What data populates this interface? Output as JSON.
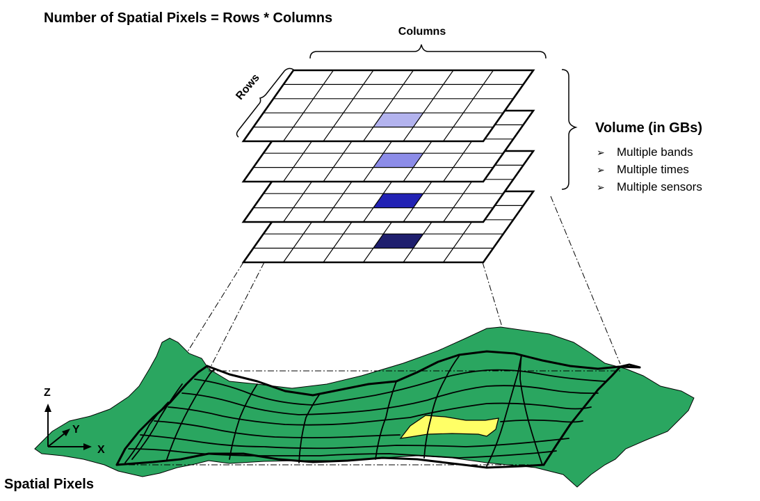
{
  "title": "Number of Spatial Pixels = Rows * Columns",
  "labels": {
    "columns": "Columns",
    "rows": "Rows",
    "volume_heading": "Volume (in GBs)",
    "bottom_caption": "Spatial Pixels"
  },
  "volume_items": [
    "Multiple bands",
    "Multiple times",
    "Multiple sensors"
  ],
  "axes": {
    "z": "Z",
    "y": "Y",
    "x": "X"
  },
  "layer_highlight_colors": [
    "#1f1f6e",
    "#2222b4",
    "#8c8ce8",
    "#b3b3ee"
  ],
  "colors": {
    "terrain": "#2aa660",
    "terrain_highlight": "#ffff66",
    "grid_line": "#000000"
  }
}
